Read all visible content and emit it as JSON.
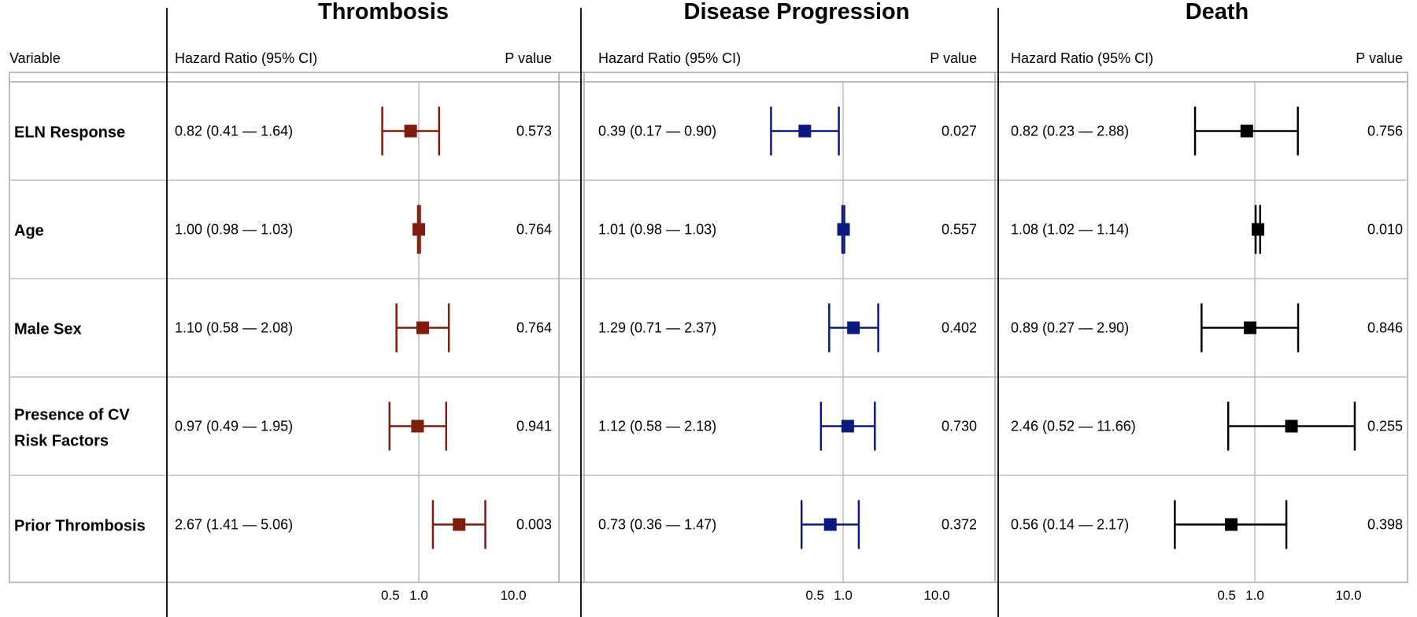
{
  "header": {
    "variable": "Variable",
    "hr_label": "Hazard Ratio (95% CI)",
    "p_label": "P value"
  },
  "chart_data": {
    "type": "forest",
    "x_scale": "log",
    "x_ticks": [
      0.5,
      1.0,
      10.0
    ],
    "tick_labels": [
      "0.5",
      "1.0",
      "10.0"
    ],
    "reference_line": 1.0,
    "variables": [
      {
        "label": "ELN Response"
      },
      {
        "label": "Age"
      },
      {
        "label": "Male Sex"
      },
      {
        "label": "Presence of CV",
        "label2": "Risk Factors"
      },
      {
        "label": "Prior Thrombosis"
      }
    ],
    "panels": [
      {
        "title": "Thrombosis",
        "color": "#7f1d0d",
        "rows": [
          {
            "hr": 0.82,
            "lo": 0.41,
            "hi": 1.64,
            "text": "0.82 (0.41 — 1.64)",
            "p": "0.573"
          },
          {
            "hr": 1.0,
            "lo": 0.98,
            "hi": 1.03,
            "text": "1.00 (0.98 — 1.03)",
            "p": "0.764"
          },
          {
            "hr": 1.1,
            "lo": 0.58,
            "hi": 2.08,
            "text": "1.10 (0.58 — 2.08)",
            "p": "0.764"
          },
          {
            "hr": 0.97,
            "lo": 0.49,
            "hi": 1.95,
            "text": "0.97 (0.49 — 1.95)",
            "p": "0.941"
          },
          {
            "hr": 2.67,
            "lo": 1.41,
            "hi": 5.06,
            "text": "2.67 (1.41 — 5.06)",
            "p": "0.003"
          }
        ]
      },
      {
        "title": "Disease Progression",
        "color": "#0c1a80",
        "rows": [
          {
            "hr": 0.39,
            "lo": 0.17,
            "hi": 0.9,
            "text": "0.39 (0.17 — 0.90)",
            "p": "0.027"
          },
          {
            "hr": 1.01,
            "lo": 0.98,
            "hi": 1.03,
            "text": "1.01 (0.98 — 1.03)",
            "p": "0.557"
          },
          {
            "hr": 1.29,
            "lo": 0.71,
            "hi": 2.37,
            "text": "1.29 (0.71 — 2.37)",
            "p": "0.402"
          },
          {
            "hr": 1.12,
            "lo": 0.58,
            "hi": 2.18,
            "text": "1.12 (0.58 — 2.18)",
            "p": "0.730"
          },
          {
            "hr": 0.73,
            "lo": 0.36,
            "hi": 1.47,
            "text": "0.73 (0.36 — 1.47)",
            "p": "0.372"
          }
        ]
      },
      {
        "title": "Death",
        "color": "#000000",
        "rows": [
          {
            "hr": 0.82,
            "lo": 0.23,
            "hi": 2.88,
            "text": "0.82 (0.23 — 2.88)",
            "p": "0.756"
          },
          {
            "hr": 1.08,
            "lo": 1.02,
            "hi": 1.14,
            "text": "1.08 (1.02 — 1.14)",
            "p": "0.010"
          },
          {
            "hr": 0.89,
            "lo": 0.27,
            "hi": 2.9,
            "text": "0.89 (0.27 — 2.90)",
            "p": "0.846"
          },
          {
            "hr": 2.46,
            "lo": 0.52,
            "hi": 11.66,
            "text": "2.46 (0.52 — 11.66)",
            "p": "0.255"
          },
          {
            "hr": 0.56,
            "lo": 0.14,
            "hi": 2.17,
            "text": "0.56 (0.14 — 2.17)",
            "p": "0.398"
          }
        ]
      }
    ]
  }
}
